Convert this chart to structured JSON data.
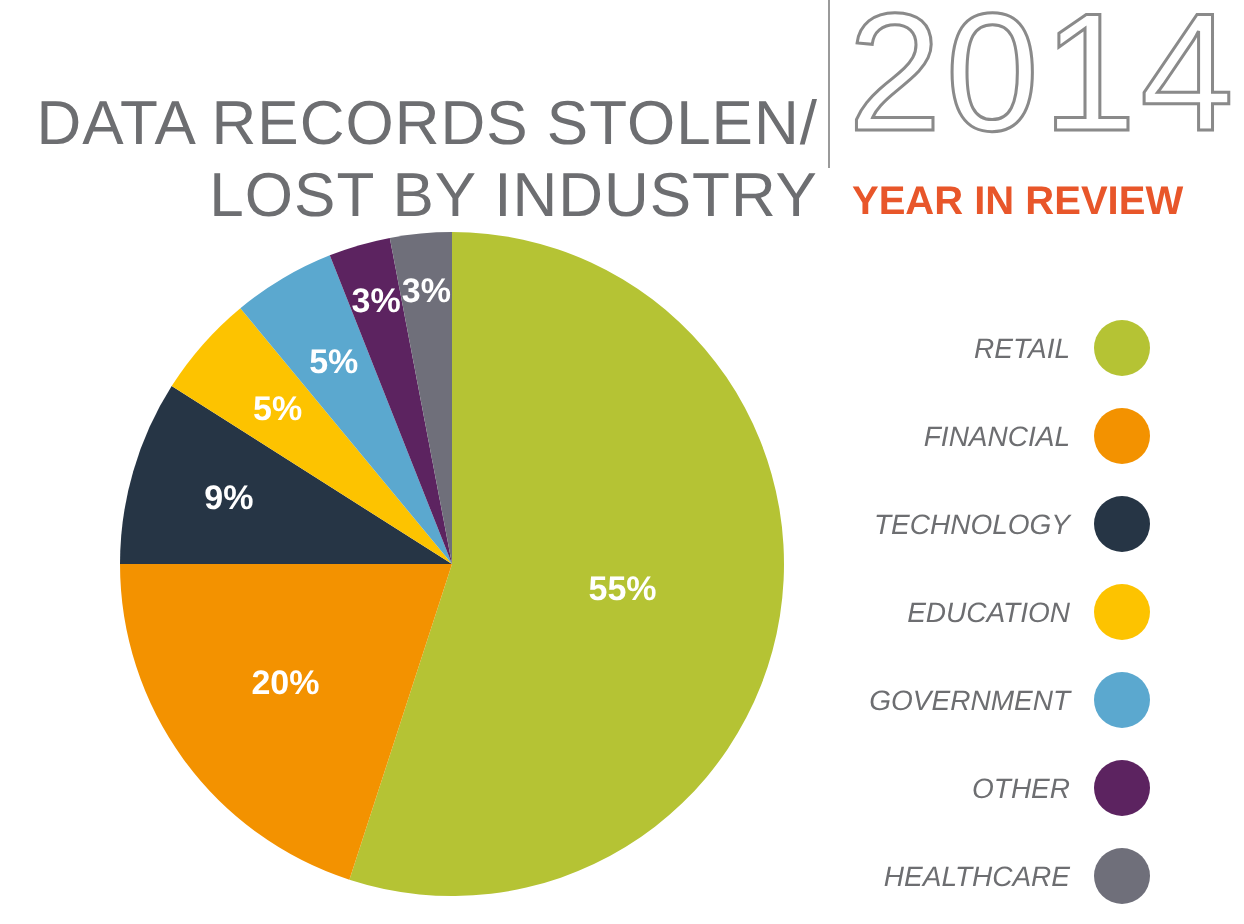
{
  "chart_data": {
    "type": "pie",
    "title": "DATA RECORDS STOLEN/ LOST BY INDUSTRY",
    "subtitle": "YEAR IN REVIEW",
    "annotations": [
      "2014"
    ],
    "categories": [
      "RETAIL",
      "FINANCIAL",
      "TECHNOLOGY",
      "EDUCATION",
      "GOVERNMENT",
      "OTHER",
      "HEALTHCARE"
    ],
    "values": [
      55,
      20,
      9,
      5,
      5,
      3,
      3
    ],
    "colors": [
      "#b5c334",
      "#f39200",
      "#263545",
      "#fdc300",
      "#5ba8cf",
      "#5c2360",
      "#6f6f7a"
    ],
    "value_labels": [
      "55%",
      "20%",
      "9%",
      "5%",
      "5%",
      "3%",
      "3%"
    ],
    "legend": "right"
  }
}
